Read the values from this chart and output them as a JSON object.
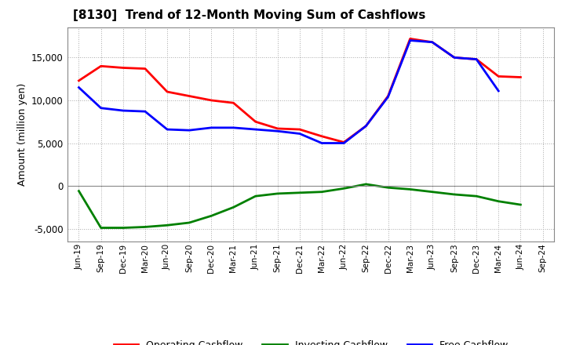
{
  "title": "[8130]  Trend of 12-Month Moving Sum of Cashflows",
  "ylabel": "Amount (million yen)",
  "x_labels": [
    "Jun-19",
    "Sep-19",
    "Dec-19",
    "Mar-20",
    "Jun-20",
    "Sep-20",
    "Dec-20",
    "Mar-21",
    "Jun-21",
    "Sep-21",
    "Dec-21",
    "Mar-22",
    "Jun-22",
    "Sep-22",
    "Dec-22",
    "Mar-23",
    "Jun-23",
    "Sep-23",
    "Dec-23",
    "Mar-24",
    "Jun-24",
    "Sep-24"
  ],
  "operating_cashflow": [
    12300,
    14000,
    13800,
    13700,
    11000,
    10500,
    10000,
    9700,
    7500,
    6700,
    6600,
    5800,
    5100,
    7000,
    10500,
    17200,
    16800,
    15000,
    14800,
    12800,
    12700,
    null
  ],
  "investing_cashflow": [
    -600,
    -4900,
    -4900,
    -4800,
    -4600,
    -4300,
    -3500,
    -2500,
    -1200,
    -900,
    -800,
    -700,
    -300,
    200,
    -200,
    -400,
    -700,
    -1000,
    -1200,
    -1800,
    -2200,
    null
  ],
  "free_cashflow": [
    11500,
    9100,
    8800,
    8700,
    6600,
    6500,
    6800,
    6800,
    6600,
    6400,
    6100,
    5000,
    5000,
    7000,
    10400,
    17000,
    16800,
    15000,
    14800,
    11100,
    null,
    null
  ],
  "ylim": [
    -6500,
    18500
  ],
  "yticks": [
    -5000,
    0,
    5000,
    10000,
    15000
  ],
  "operating_color": "#ff0000",
  "investing_color": "#008000",
  "free_color": "#0000ff",
  "background_color": "#ffffff",
  "plot_bg_color": "#ffffff",
  "grid_color": "#aaaaaa",
  "linewidth": 2.0,
  "legend_labels": [
    "Operating Cashflow",
    "Investing Cashflow",
    "Free Cashflow"
  ]
}
